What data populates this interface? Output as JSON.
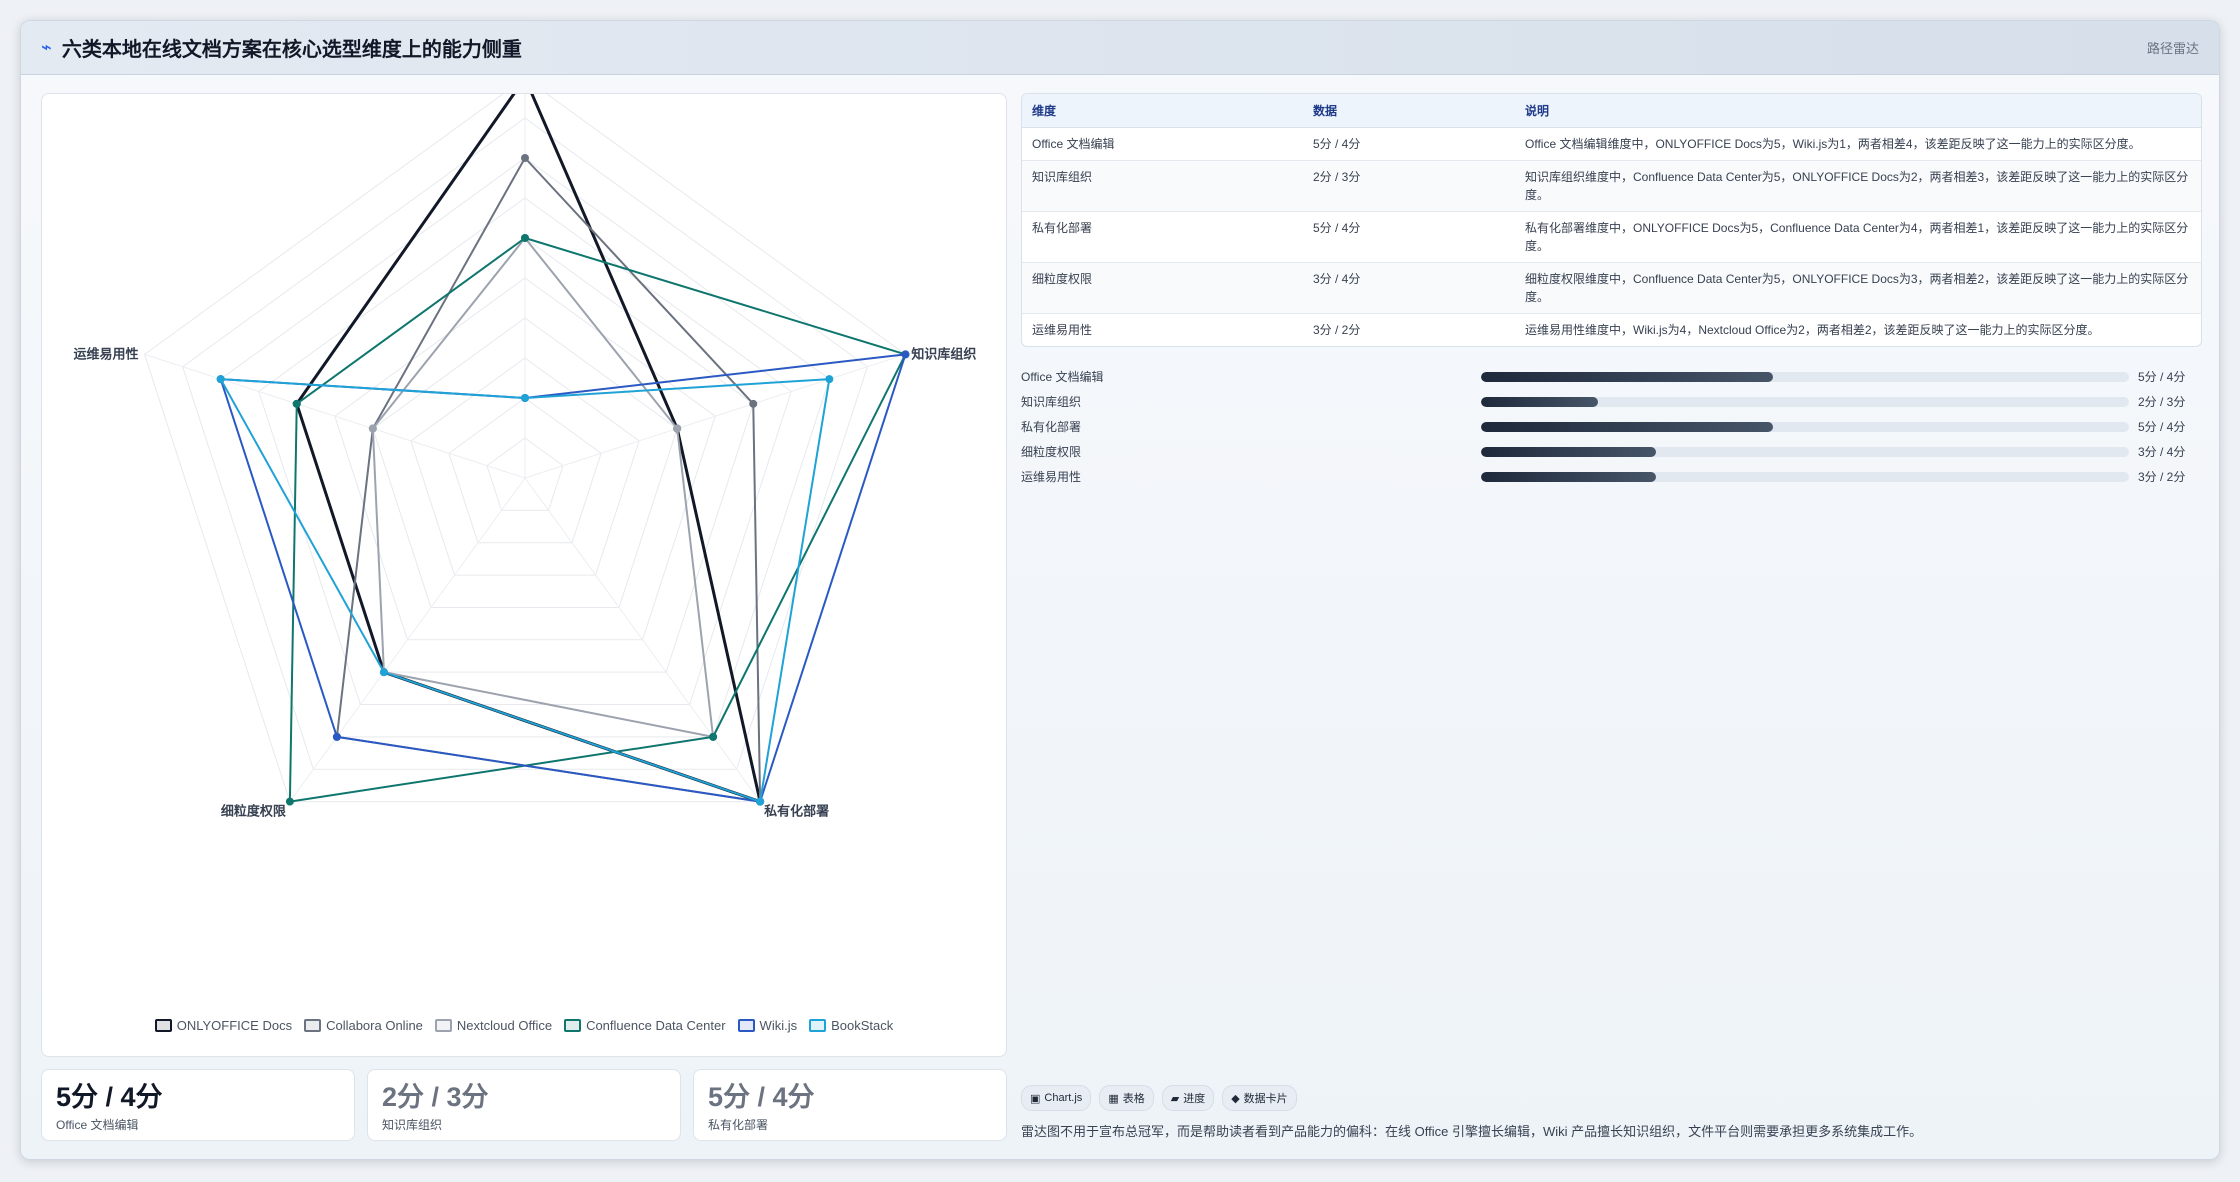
{
  "header": {
    "icon": "chart-radar-icon",
    "title": "六类本地在线文档方案在核心选型维度上的能力侧重",
    "tag": "路径雷达"
  },
  "chart_data": {
    "type": "radar",
    "axes": [
      "Office 文档编辑",
      "知识库组织",
      "私有化部署",
      "细粒度权限",
      "运维易用性"
    ],
    "range": [
      0,
      5
    ],
    "grid": true,
    "legend_position": "bottom",
    "series": [
      {
        "name": "ONLYOFFICE Docs",
        "color": "#111827",
        "values": [
          5,
          2,
          5,
          3,
          3
        ]
      },
      {
        "name": "Collabora Online",
        "color": "#6b7280",
        "values": [
          4,
          3,
          5,
          4,
          2
        ]
      },
      {
        "name": "Nextcloud Office",
        "color": "#9ca3af",
        "values": [
          3,
          2,
          4,
          3,
          2
        ]
      },
      {
        "name": "Confluence Data Center",
        "color": "#0f766e",
        "values": [
          3,
          5,
          4,
          5,
          3
        ]
      },
      {
        "name": "Wiki.js",
        "color": "#2b59c3",
        "values": [
          1,
          5,
          5,
          4,
          4
        ]
      },
      {
        "name": "BookStack",
        "color": "#1fa2d6",
        "values": [
          1,
          4,
          5,
          3,
          4
        ]
      }
    ]
  },
  "table": {
    "headers": [
      "维度",
      "数据",
      "说明"
    ],
    "rows": [
      {
        "dim": "Office 文档编辑",
        "data": "5分 / 4分",
        "desc": "Office 文档编辑维度中，ONLYOFFICE Docs为5，Wiki.js为1，两者相差4，该差距反映了这一能力上的实际区分度。"
      },
      {
        "dim": "知识库组织",
        "data": "2分 / 3分",
        "desc": "知识库组织维度中，Confluence Data Center为5，ONLYOFFICE Docs为2，两者相差3，该差距反映了这一能力上的实际区分度。"
      },
      {
        "dim": "私有化部署",
        "data": "5分 / 4分",
        "desc": "私有化部署维度中，ONLYOFFICE Docs为5，Confluence Data Center为4，两者相差1，该差距反映了这一能力上的实际区分度。"
      },
      {
        "dim": "细粒度权限",
        "data": "3分 / 4分",
        "desc": "细粒度权限维度中，Confluence Data Center为5，ONLYOFFICE Docs为3，两者相差2，该差距反映了这一能力上的实际区分度。"
      },
      {
        "dim": "运维易用性",
        "data": "3分 / 2分",
        "desc": "运维易用性维度中，Wiki.js为4，Nextcloud Office为2，两者相差2，该差距反映了这一能力上的实际区分度。"
      }
    ]
  },
  "bars": [
    {
      "label": "Office 文档编辑",
      "value": "5分 / 4分",
      "fraction": 0.45
    },
    {
      "label": "知识库组织",
      "value": "2分 / 3分",
      "fraction": 0.18
    },
    {
      "label": "私有化部署",
      "value": "5分 / 4分",
      "fraction": 0.45
    },
    {
      "label": "细粒度权限",
      "value": "3分 / 4分",
      "fraction": 0.27
    },
    {
      "label": "运维易用性",
      "value": "3分 / 2分",
      "fraction": 0.27
    }
  ],
  "cards": [
    {
      "value": "5分 / 4分",
      "label": "Office 文档编辑"
    },
    {
      "value": "2分 / 3分",
      "label": "知识库组织"
    },
    {
      "value": "5分 / 4分",
      "label": "私有化部署"
    }
  ],
  "chips": [
    {
      "icon": "▣",
      "label": "Chart.js"
    },
    {
      "icon": "▦",
      "label": "表格"
    },
    {
      "icon": "▰",
      "label": "进度"
    },
    {
      "icon": "◆",
      "label": "数据卡片"
    }
  ],
  "footnote": "雷达图不用于宣布总冠军，而是帮助读者看到产品能力的偏科：在线 Office 引擎擅长编辑，Wiki 产品擅长知识组织，文件平台则需要承担更多系统集成工作。"
}
